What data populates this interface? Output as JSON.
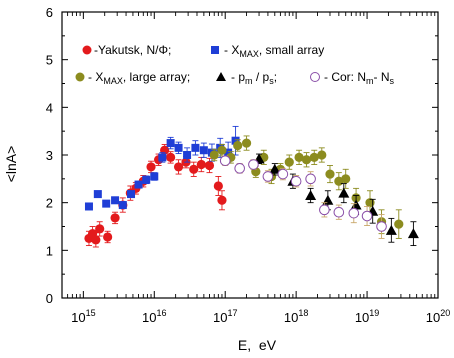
{
  "chart_data": {
    "type": "scatter",
    "xlabel": "E,  eV",
    "ylabel": "<lnA>",
    "xscale": "log",
    "xlim": [
      500000000000000.0,
      1e+20
    ],
    "ylim": [
      0,
      6
    ],
    "x_ticks": [
      {
        "value": 1000000000000000.0,
        "base": "10",
        "exp": "15"
      },
      {
        "value": 1e+16,
        "base": "10",
        "exp": "16"
      },
      {
        "value": 1e+17,
        "base": "10",
        "exp": "17"
      },
      {
        "value": 1e+18,
        "base": "10",
        "exp": "18"
      },
      {
        "value": 1e+19,
        "base": "10",
        "exp": "19"
      },
      {
        "value": 1e+20,
        "base": "10",
        "exp": "20"
      }
    ],
    "y_ticks": [
      0,
      1,
      2,
      3,
      4,
      5,
      6
    ],
    "legend": {
      "placement": "top",
      "line1_a": "-Yakutsk, N/Φ;",
      "line1_b": "- X",
      "line1_b_sub": "MAX",
      "line1_b_tail": ", small array",
      "line2_a": "- X",
      "line2_a_sub": "MAX",
      "line2_a_tail": ", large array;",
      "line2_b": "- p",
      "line2_b_sub1": "m",
      "line2_b_mid": " / p",
      "line2_b_sub2": "s",
      "line2_b_tail": ";",
      "line2_c": "- Cor: N",
      "line2_c_sub1": "m",
      "line2_c_mid": "- N",
      "line2_c_sub2": "s"
    },
    "series": [
      {
        "name": "Yakutsk, N/Φ",
        "marker": "circle-filled",
        "color": "#e31a1c",
        "points": [
          {
            "x": 1200000000000000.0,
            "y": 1.25,
            "err": 0.15
          },
          {
            "x": 1350000000000000.0,
            "y": 1.35,
            "err": 0.15
          },
          {
            "x": 1500000000000000.0,
            "y": 1.22,
            "err": 0.15
          },
          {
            "x": 1700000000000000.0,
            "y": 1.45,
            "err": 0.15
          },
          {
            "x": 2200000000000000.0,
            "y": 1.28,
            "err": 0.12
          },
          {
            "x": 2800000000000000.0,
            "y": 1.68,
            "err": 0.12
          },
          {
            "x": 3600000000000000.0,
            "y": 1.95,
            "err": 0.15
          },
          {
            "x": 4600000000000000.0,
            "y": 2.2,
            "err": 0.15
          },
          {
            "x": 5500000000000000.0,
            "y": 2.3,
            "err": 0.12
          },
          {
            "x": 7000000000000000.0,
            "y": 2.45,
            "err": 0.12
          },
          {
            "x": 9000000000000000.0,
            "y": 2.75,
            "err": 0.12
          },
          {
            "x": 1.15e+16,
            "y": 2.9,
            "err": 0.12
          },
          {
            "x": 1.4e+16,
            "y": 3.1,
            "err": 0.12
          },
          {
            "x": 1.7e+16,
            "y": 2.95,
            "err": 0.12
          },
          {
            "x": 2.2e+16,
            "y": 2.75,
            "err": 0.15
          },
          {
            "x": 2.8e+16,
            "y": 2.85,
            "err": 0.12
          },
          {
            "x": 3.6e+16,
            "y": 2.7,
            "err": 0.15
          },
          {
            "x": 4.6e+16,
            "y": 2.8,
            "err": 0.15
          },
          {
            "x": 6e+16,
            "y": 2.78,
            "err": 0.15
          },
          {
            "x": 8e+16,
            "y": 2.35,
            "err": 0.2
          },
          {
            "x": 9e+16,
            "y": 2.05,
            "err": 0.2
          }
        ]
      },
      {
        "name": "X_MAX, small array",
        "marker": "square-filled",
        "color": "#1f3ed6",
        "points": [
          {
            "x": 1200000000000000.0,
            "y": 1.92,
            "err": 0.06
          },
          {
            "x": 1600000000000000.0,
            "y": 2.18,
            "err": 0.06
          },
          {
            "x": 2100000000000000.0,
            "y": 1.98,
            "err": 0.06
          },
          {
            "x": 2800000000000000.0,
            "y": 2.05,
            "err": 0.06
          },
          {
            "x": 3600000000000000.0,
            "y": 1.95,
            "err": 0.06
          },
          {
            "x": 4700000000000000.0,
            "y": 2.18,
            "err": 0.06
          },
          {
            "x": 6000000000000000.0,
            "y": 2.38,
            "err": 0.06
          },
          {
            "x": 7700000000000000.0,
            "y": 2.48,
            "err": 0.08
          },
          {
            "x": 1e+16,
            "y": 2.55,
            "err": 0.08
          },
          {
            "x": 1.3e+16,
            "y": 2.95,
            "err": 0.1
          },
          {
            "x": 1.7e+16,
            "y": 3.25,
            "err": 0.12
          },
          {
            "x": 2.2e+16,
            "y": 3.15,
            "err": 0.12
          },
          {
            "x": 2.9e+16,
            "y": 3.0,
            "err": 0.15
          },
          {
            "x": 3.8e+16,
            "y": 3.15,
            "err": 0.15
          },
          {
            "x": 5e+16,
            "y": 3.1,
            "err": 0.15
          },
          {
            "x": 6.5e+16,
            "y": 3.05,
            "err": 0.18
          },
          {
            "x": 8.5e+16,
            "y": 3.15,
            "err": 0.2
          },
          {
            "x": 1.1e+17,
            "y": 3.05,
            "err": 0.22
          },
          {
            "x": 1.4e+17,
            "y": 3.3,
            "err": 0.3
          }
        ]
      },
      {
        "name": "X_MAX, large array",
        "marker": "circle-filled",
        "color": "#8c8c1f",
        "points": [
          {
            "x": 7e+16,
            "y": 3.0,
            "err": 0.12
          },
          {
            "x": 9e+16,
            "y": 3.1,
            "err": 0.12
          },
          {
            "x": 1.2e+17,
            "y": 2.95,
            "err": 0.12
          },
          {
            "x": 1.5e+17,
            "y": 3.2,
            "err": 0.12
          },
          {
            "x": 2e+17,
            "y": 3.25,
            "err": 0.15
          },
          {
            "x": 2.7e+17,
            "y": 2.65,
            "err": 0.12
          },
          {
            "x": 3.5e+17,
            "y": 2.95,
            "err": 0.15
          },
          {
            "x": 4.5e+17,
            "y": 2.55,
            "err": 0.15
          },
          {
            "x": 6e+17,
            "y": 2.7,
            "err": 0.12
          },
          {
            "x": 8e+17,
            "y": 2.85,
            "err": 0.15
          },
          {
            "x": 1.1e+18,
            "y": 2.95,
            "err": 0.15
          },
          {
            "x": 1.4e+18,
            "y": 2.9,
            "err": 0.15
          },
          {
            "x": 1.8e+18,
            "y": 2.95,
            "err": 0.15
          },
          {
            "x": 2.3e+18,
            "y": 3.0,
            "err": 0.15
          },
          {
            "x": 3e+18,
            "y": 2.6,
            "err": 0.18
          },
          {
            "x": 4e+18,
            "y": 2.45,
            "err": 0.18
          },
          {
            "x": 5e+18,
            "y": 2.5,
            "err": 0.2
          },
          {
            "x": 7e+18,
            "y": 2.1,
            "err": 0.2
          },
          {
            "x": 1.1e+19,
            "y": 2.0,
            "err": 0.25
          },
          {
            "x": 1.6e+19,
            "y": 1.6,
            "err": 0.25
          },
          {
            "x": 2.8e+19,
            "y": 1.55,
            "err": 0.3
          }
        ]
      },
      {
        "name": "p_m / p_s",
        "marker": "triangle-filled",
        "color": "#000000",
        "points": [
          {
            "x": 3e+17,
            "y": 2.92,
            "err": 0.1
          },
          {
            "x": 5e+17,
            "y": 2.7,
            "err": 0.12
          },
          {
            "x": 9e+17,
            "y": 2.45,
            "err": 0.15
          },
          {
            "x": 1.6e+18,
            "y": 2.15,
            "err": 0.15
          },
          {
            "x": 2.8e+18,
            "y": 2.05,
            "err": 0.2
          },
          {
            "x": 4.7e+18,
            "y": 2.2,
            "err": 0.2
          },
          {
            "x": 7e+18,
            "y": 1.95,
            "err": 0.2
          },
          {
            "x": 1.2e+19,
            "y": 1.82,
            "err": 0.25
          },
          {
            "x": 2.2e+19,
            "y": 1.42,
            "err": 0.25
          },
          {
            "x": 4.5e+19,
            "y": 1.35,
            "err": 0.25
          }
        ]
      },
      {
        "name": "Cor: N_m - N_s",
        "marker": "circle-open",
        "color": "#8a4fa8",
        "points": [
          {
            "x": 1e+17,
            "y": 2.88,
            "err": 0.1
          },
          {
            "x": 1.6e+17,
            "y": 2.72,
            "err": 0.1
          },
          {
            "x": 2.5e+17,
            "y": 2.8,
            "err": 0.1
          },
          {
            "x": 4e+17,
            "y": 2.55,
            "err": 0.12
          },
          {
            "x": 6.5e+17,
            "y": 2.6,
            "err": 0.12
          },
          {
            "x": 1e+18,
            "y": 2.45,
            "err": 0.12
          },
          {
            "x": 1.6e+18,
            "y": 2.5,
            "err": 0.15
          },
          {
            "x": 2.5e+18,
            "y": 1.85,
            "err": 0.15
          },
          {
            "x": 4e+18,
            "y": 1.8,
            "err": 0.15
          },
          {
            "x": 6.5e+18,
            "y": 1.78,
            "err": 0.2
          },
          {
            "x": 1e+19,
            "y": 1.72,
            "err": 0.2
          },
          {
            "x": 1.6e+19,
            "y": 1.5,
            "err": 0.25
          }
        ]
      }
    ]
  }
}
